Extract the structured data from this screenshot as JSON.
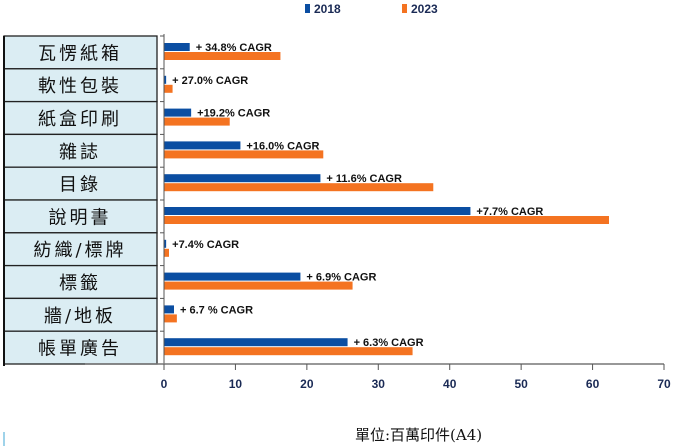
{
  "chart_data": {
    "type": "bar",
    "orientation": "horizontal",
    "title": "",
    "xlabel": "",
    "ylabel": "",
    "unit_label": "單位:百萬印件(A4)",
    "xlim": [
      0,
      70
    ],
    "xticks": [
      0,
      10,
      20,
      30,
      40,
      50,
      60,
      70
    ],
    "grid": false,
    "legend_position": "top",
    "categories": [
      "瓦愣紙箱",
      "軟性包裝",
      "紙盒印刷",
      "雜誌",
      "目錄",
      "說明書",
      "紡織/標牌",
      "標籤",
      "牆/地板",
      "帳單廣告"
    ],
    "series": [
      {
        "name": "2018",
        "color": "#0b4ea2",
        "values": [
          3.6,
          0.3,
          3.8,
          10.7,
          21.9,
          42.9,
          0.3,
          19.1,
          1.4,
          25.7
        ]
      },
      {
        "name": "2023",
        "color": "#f47321",
        "values": [
          16.3,
          1.2,
          9.2,
          22.3,
          37.7,
          62.3,
          0.7,
          26.4,
          1.8,
          34.8
        ]
      }
    ],
    "annotations": [
      "+ 34.8% CAGR",
      "+ 27.0% CAGR",
      "+19.2% CAGR",
      "+16.0% CAGR",
      "+ 11.6% CAGR",
      "+7.7% CAGR",
      "+7.4% CAGR",
      "+ 6.9% CAGR",
      "+ 6.7 % CAGR",
      "+ 6.3% CAGR"
    ]
  }
}
